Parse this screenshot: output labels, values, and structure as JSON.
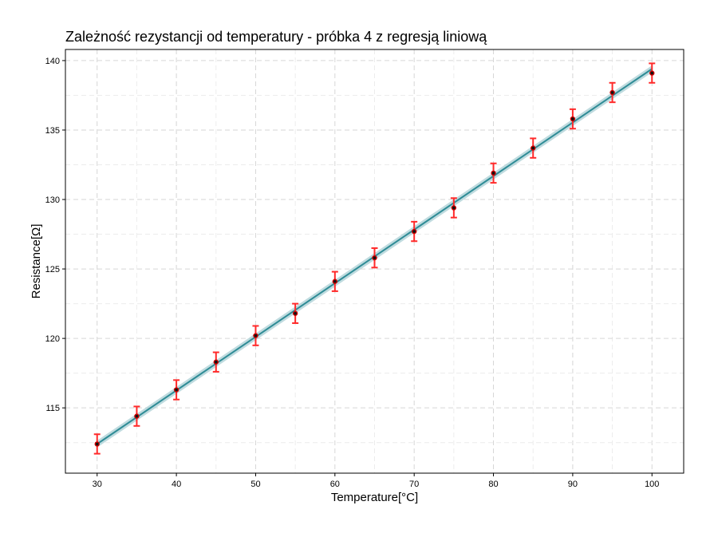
{
  "chart_data": {
    "type": "scatter",
    "title": "Zależność rezystancji od temperatury - próbka 4 z regresją liniową",
    "xlabel": "Temperature[°C]",
    "ylabel": "Resistance[Ω]",
    "xlim": [
      26,
      104
    ],
    "ylim": [
      110.3,
      140.8
    ],
    "x_ticks": [
      30,
      40,
      50,
      60,
      70,
      80,
      90,
      100
    ],
    "y_ticks": [
      115,
      120,
      125,
      130,
      135,
      140
    ],
    "grid": true,
    "legend": "none",
    "x": [
      30,
      35,
      40,
      45,
      50,
      55,
      60,
      65,
      70,
      75,
      80,
      85,
      90,
      95,
      100
    ],
    "y": [
      112.4,
      114.4,
      116.3,
      118.3,
      120.2,
      121.8,
      124.1,
      125.8,
      127.7,
      129.4,
      131.9,
      133.7,
      135.8,
      137.7,
      139.1
    ],
    "error": [
      0.7,
      0.7,
      0.7,
      0.7,
      0.7,
      0.7,
      0.7,
      0.7,
      0.7,
      0.7,
      0.7,
      0.7,
      0.7,
      0.7,
      0.7
    ],
    "regression": {
      "x": [
        30,
        100
      ],
      "y": [
        112.4,
        139.4
      ],
      "ci": 0.25
    },
    "colors": {
      "points": "#111111",
      "point_fill": "#cc0000",
      "error_bars": "#ff2a2a",
      "regression_line": "#2f8c96",
      "confidence_band": "#a9cfd4"
    }
  }
}
